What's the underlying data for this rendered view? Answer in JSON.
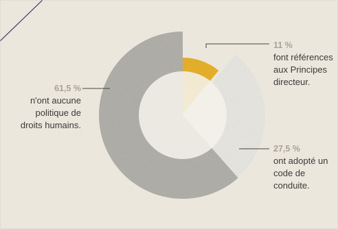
{
  "chart_data": {
    "type": "pie",
    "categories": [
      "n'ont aucune politique de droits humains.",
      "font références aux Principes directeur.",
      "ont adopté un code de conduite."
    ],
    "values": [
      61.5,
      11,
      27.5
    ],
    "labels": [
      {
        "pct": "61,5 %",
        "text": "n'ont aucune politique de droits humains."
      },
      {
        "pct": "11 %",
        "text": "font références aux Principes directeur."
      },
      {
        "pct": "27,5 %",
        "text": "ont adopté un code de conduite."
      }
    ],
    "title": "",
    "colors": [
      "#b5b3ae",
      "#ebb52d",
      "#ecebe6"
    ],
    "legend": "none"
  },
  "style": {
    "background": "#ece7dc",
    "hole_color": "#f4f1ea",
    "leader_color": "#444444"
  }
}
